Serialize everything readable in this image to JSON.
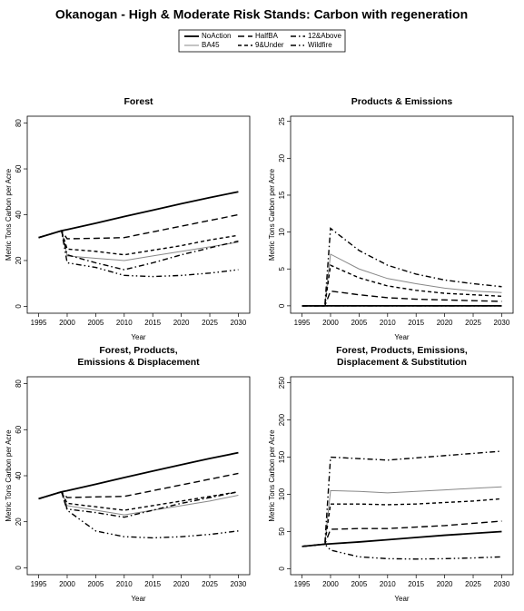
{
  "title": "Okanogan  - High & Moderate Risk Stands: Carbon with regeneration",
  "legend": {
    "series": [
      {
        "name": "NoAction",
        "color": "#000000",
        "dash": "none",
        "width": 1.8
      },
      {
        "name": "BA45",
        "color": "#888888",
        "dash": "none",
        "width": 1
      },
      {
        "name": "HalfBA",
        "color": "#000000",
        "dash": "7,4",
        "width": 1.4
      },
      {
        "name": "9&Under",
        "color": "#000000",
        "dash": "4,3",
        "width": 1.4
      },
      {
        "name": "12&Above",
        "color": "#000000",
        "dash": "6,3,1.5,3",
        "width": 1.4
      },
      {
        "name": "Wildfire",
        "color": "#000000",
        "dash": "6,3,1.5,3,1.5,3",
        "width": 1.4
      }
    ]
  },
  "chart_data": [
    {
      "type": "line",
      "title": [
        "Forest"
      ],
      "xlabel": "Year",
      "ylabel": "Metric Tons Carbon per Acre",
      "x": [
        1995,
        1999,
        2000,
        2005,
        2010,
        2015,
        2020,
        2025,
        2030
      ],
      "xlim": [
        1993,
        2032
      ],
      "xticks": [
        1995,
        2000,
        2005,
        2010,
        2015,
        2020,
        2025,
        2030
      ],
      "ylim": [
        -3,
        83
      ],
      "yticks": [
        0,
        20,
        40,
        60,
        80
      ],
      "series": [
        {
          "values": [
            30,
            33,
            33.5,
            36.3,
            39.2,
            42,
            44.8,
            47.5,
            50
          ]
        },
        {
          "values": [
            30,
            33,
            22,
            21,
            20,
            22,
            24,
            26,
            28
          ]
        },
        {
          "values": [
            30,
            33,
            29.5,
            29.7,
            30,
            32.5,
            35,
            37.5,
            40
          ]
        },
        {
          "values": [
            30,
            33,
            25,
            24,
            22.5,
            24.5,
            26.5,
            29,
            31
          ]
        },
        {
          "values": [
            30,
            33,
            22.5,
            19,
            16,
            19,
            22.5,
            25.5,
            28.5
          ]
        },
        {
          "values": [
            30,
            33,
            19,
            17,
            13.5,
            13,
            13.5,
            14.5,
            16
          ]
        }
      ]
    },
    {
      "type": "line",
      "title": [
        "Products & Emissions"
      ],
      "xlabel": "Year",
      "ylabel": "Metric Tons Carbon per Acre",
      "x": [
        1995,
        1999,
        2000,
        2005,
        2010,
        2015,
        2020,
        2025,
        2030
      ],
      "xlim": [
        1993,
        2032
      ],
      "xticks": [
        1995,
        2000,
        2005,
        2010,
        2015,
        2020,
        2025,
        2030
      ],
      "ylim": [
        -1,
        25.7
      ],
      "yticks": [
        0,
        5,
        10,
        15,
        20,
        25
      ],
      "series": [
        {
          "values": [
            0,
            0,
            0,
            0,
            0,
            0,
            0,
            0,
            0
          ]
        },
        {
          "values": [
            0,
            0,
            7,
            5,
            3.7,
            3,
            2.4,
            2,
            1.8
          ]
        },
        {
          "values": [
            0,
            0,
            2,
            1.5,
            1.1,
            0.9,
            0.8,
            0.7,
            0.6
          ]
        },
        {
          "values": [
            0,
            0,
            5.5,
            3.8,
            2.7,
            2.1,
            1.7,
            1.5,
            1.3
          ]
        },
        {
          "values": [
            0,
            0,
            10.5,
            7.5,
            5.5,
            4.3,
            3.5,
            3,
            2.6
          ]
        },
        {
          "values": [
            0,
            0,
            0,
            0,
            0,
            0,
            0,
            0,
            0
          ]
        }
      ]
    },
    {
      "type": "line",
      "title": [
        "Forest, Products,",
        "Emissions & Displacement"
      ],
      "xlabel": "Year",
      "ylabel": "Metric Tons Carbon per Acre",
      "x": [
        1995,
        1999,
        2000,
        2005,
        2010,
        2015,
        2020,
        2025,
        2030
      ],
      "xlim": [
        1993,
        2032
      ],
      "xticks": [
        1995,
        2000,
        2005,
        2010,
        2015,
        2020,
        2025,
        2030
      ],
      "ylim": [
        -3,
        83
      ],
      "yticks": [
        0,
        20,
        40,
        60,
        80
      ],
      "series": [
        {
          "values": [
            30,
            33,
            33.5,
            36.3,
            39.2,
            42,
            44.8,
            47.5,
            50
          ]
        },
        {
          "values": [
            30,
            33,
            27,
            25,
            23,
            25,
            27,
            29,
            31.5
          ]
        },
        {
          "values": [
            30,
            33,
            30.5,
            30.8,
            31,
            33.5,
            36,
            38.5,
            41
          ]
        },
        {
          "values": [
            30,
            33,
            28,
            26.5,
            25,
            27,
            29,
            31,
            33
          ]
        },
        {
          "values": [
            30,
            33,
            25.5,
            24,
            22,
            25,
            28,
            30.5,
            33
          ]
        },
        {
          "values": [
            30,
            33,
            25,
            16,
            13.5,
            13,
            13.5,
            14.5,
            16
          ]
        }
      ]
    },
    {
      "type": "line",
      "title": [
        "Forest, Products, Emissions,",
        "Displacement & Substitution"
      ],
      "xlabel": "Year",
      "ylabel": "Metric Tons Carbon per Acre",
      "x": [
        1995,
        1999,
        2000,
        2005,
        2010,
        2015,
        2020,
        2025,
        2030
      ],
      "xlim": [
        1993,
        2032
      ],
      "xticks": [
        1995,
        2000,
        2005,
        2010,
        2015,
        2020,
        2025,
        2030
      ],
      "ylim": [
        -8,
        258
      ],
      "yticks": [
        0,
        50,
        100,
        150,
        200,
        250
      ],
      "series": [
        {
          "values": [
            30,
            33,
            33.5,
            36,
            39,
            42,
            45,
            47.5,
            50
          ]
        },
        {
          "values": [
            30,
            33,
            105,
            104,
            102,
            104,
            106,
            108,
            110
          ]
        },
        {
          "values": [
            30,
            33,
            53,
            54,
            54,
            56,
            58,
            61,
            64
          ]
        },
        {
          "values": [
            30,
            33,
            87,
            87,
            86,
            87,
            89,
            91,
            94
          ]
        },
        {
          "values": [
            30,
            33,
            150,
            148,
            146,
            149,
            152,
            155,
            158
          ]
        },
        {
          "values": [
            30,
            33,
            25,
            16,
            13.5,
            13,
            13.5,
            14.5,
            16
          ]
        }
      ]
    }
  ]
}
